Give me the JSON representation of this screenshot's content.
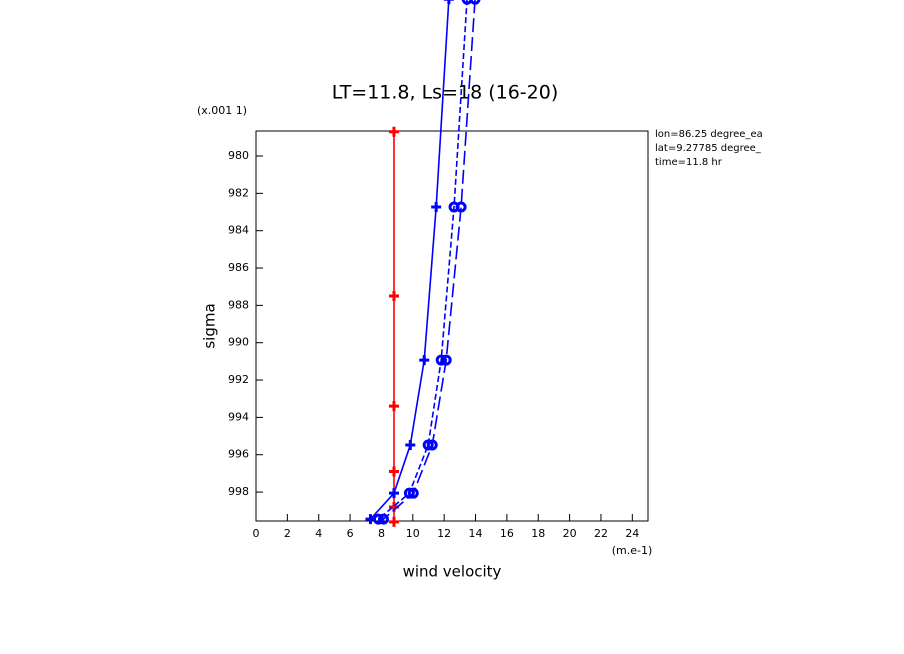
{
  "chart_data": {
    "type": "line",
    "title": "LT=11.8, Ls=18 (16-20)",
    "x_label": "wind velocity",
    "x_units": "(m.e-1)",
    "y_label": "sigma",
    "y_units": "(x.001 1)",
    "y_inverted": true,
    "xlim": [
      0,
      25
    ],
    "xticks": [
      0,
      2,
      4,
      6,
      8,
      10,
      12,
      14,
      16,
      18,
      20,
      22,
      24
    ],
    "ylim": [
      978.66,
      999.55
    ],
    "yticks": [
      980,
      982,
      984,
      986,
      988,
      990,
      992,
      994,
      996,
      998
    ],
    "annotations": [
      "lon=86.25 degree_ea",
      "lat=9.27785 degree_",
      "time=11.8 hr"
    ],
    "series": [
      {
        "color": "#ff0000",
        "dash": "solid",
        "marker": "plus",
        "sigma": [
          978.7,
          987.5,
          993.4,
          996.9,
          998.8,
          999.6
        ],
        "values": [
          8.8,
          8.8,
          8.8,
          8.8,
          8.8,
          8.8
        ]
      },
      {
        "color": "#0000ff",
        "dash": "solid",
        "marker": "plus",
        "sigma": [
          971.6,
          982.73,
          990.93,
          995.48,
          998.06,
          999.45
        ],
        "values": [
          12.3,
          11.49,
          10.73,
          9.84,
          8.8,
          7.3
        ]
      },
      {
        "color": "#0000ff",
        "dash": "short",
        "marker": "circle",
        "sigma": [
          971.6,
          982.73,
          990.93,
          995.48,
          998.06,
          999.45
        ],
        "values": [
          13.46,
          12.63,
          11.81,
          10.98,
          9.78,
          7.81
        ]
      },
      {
        "color": "#0000ff",
        "dash": "long",
        "marker": "circle",
        "sigma": [
          971.6,
          982.73,
          990.93,
          995.48,
          998.06,
          999.45
        ],
        "values": [
          13.97,
          13.08,
          12.13,
          11.24,
          10.03,
          8.13
        ]
      }
    ]
  }
}
